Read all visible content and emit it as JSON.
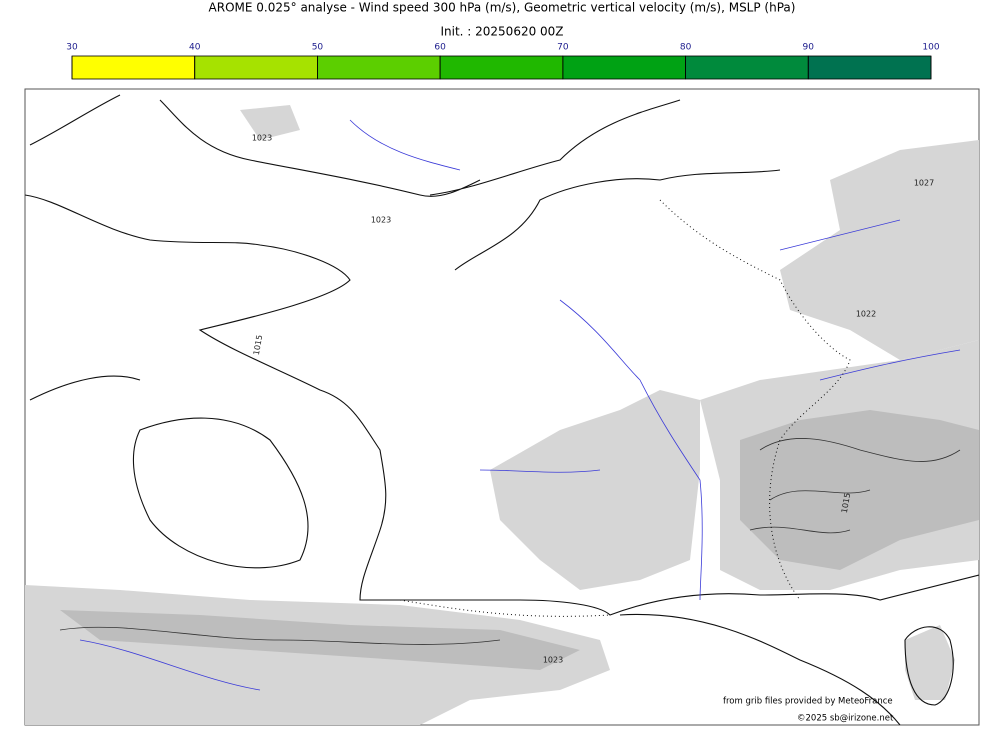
{
  "title": "AROME 0.025° analyse - Wind speed 300 hPa (m/s), Geometric vertical velocity (m/s), MSLP (hPa)",
  "subtitle": "Init. : 20250620 00Z",
  "colorbar": {
    "ticks": [
      30,
      40,
      50,
      60,
      70,
      80,
      90,
      100
    ],
    "colors": [
      "#ffff00",
      "#a6e200",
      "#5ccf00",
      "#20b800",
      "#00a214",
      "#008a3c",
      "#007250"
    ]
  },
  "isobar_labels": [
    "1023",
    "1023",
    "1015",
    "1027",
    "1022",
    "1015",
    "1023"
  ],
  "credits": [
    "from grib files provided by MeteoFrance",
    "©2025 sb@irizone.net"
  ]
}
